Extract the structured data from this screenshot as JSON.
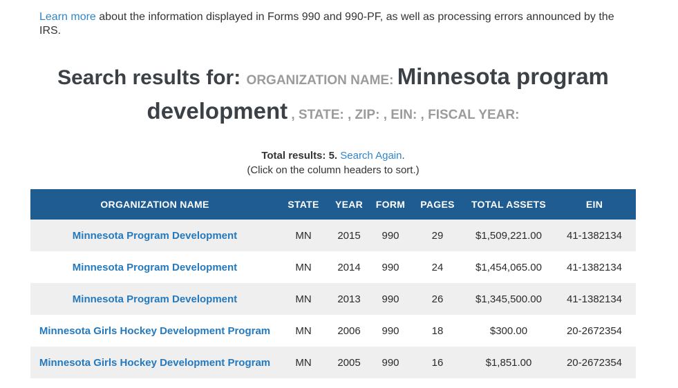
{
  "colors": {
    "table_header_bg": "#1f5c92",
    "link_blue": "#2579bd",
    "intro_link_blue": "#3085c8",
    "row_stripe": "#efefef",
    "heading_dark": "#3c4147",
    "criteria_label_gray": "#9b9b9b"
  },
  "intro": {
    "link_text": "Learn more",
    "text": " about the information displayed in Forms 990 and 990-PF, as well as processing errors announced by the IRS."
  },
  "heading": {
    "prefix": "Search results for: ",
    "org_label": "ORGANIZATION NAME: ",
    "query": "Minnesota program development",
    "suffix": " , STATE: , ZIP: , EIN: , FISCAL YEAR:"
  },
  "results_meta": {
    "total_label": "Total results: 5. ",
    "search_again_link": "Search Again",
    "search_again_suffix": ".",
    "sort_hint": "(Click on the column headers to sort.)"
  },
  "table": {
    "columns": [
      "ORGANIZATION NAME",
      "STATE",
      "YEAR",
      "FORM",
      "PAGES",
      "TOTAL ASSETS",
      "EIN"
    ],
    "rows": [
      {
        "organization": "Minnesota Program Development",
        "state": "MN",
        "year": "2015",
        "form": "990",
        "pages": "29",
        "total_assets": "$1,509,221.00",
        "ein": "41-1382134"
      },
      {
        "organization": "Minnesota Program Development",
        "state": "MN",
        "year": "2014",
        "form": "990",
        "pages": "24",
        "total_assets": "$1,454,065.00",
        "ein": "41-1382134"
      },
      {
        "organization": "Minnesota Program Development",
        "state": "MN",
        "year": "2013",
        "form": "990",
        "pages": "26",
        "total_assets": "$1,345,500.00",
        "ein": "41-1382134"
      },
      {
        "organization": "Minnesota Girls Hockey Development Program",
        "state": "MN",
        "year": "2006",
        "form": "990",
        "pages": "18",
        "total_assets": "$300.00",
        "ein": "20-2672354"
      },
      {
        "organization": "Minnesota Girls Hockey Development Program",
        "state": "MN",
        "year": "2005",
        "form": "990",
        "pages": "16",
        "total_assets": "$1,851.00",
        "ein": "20-2672354"
      }
    ]
  }
}
